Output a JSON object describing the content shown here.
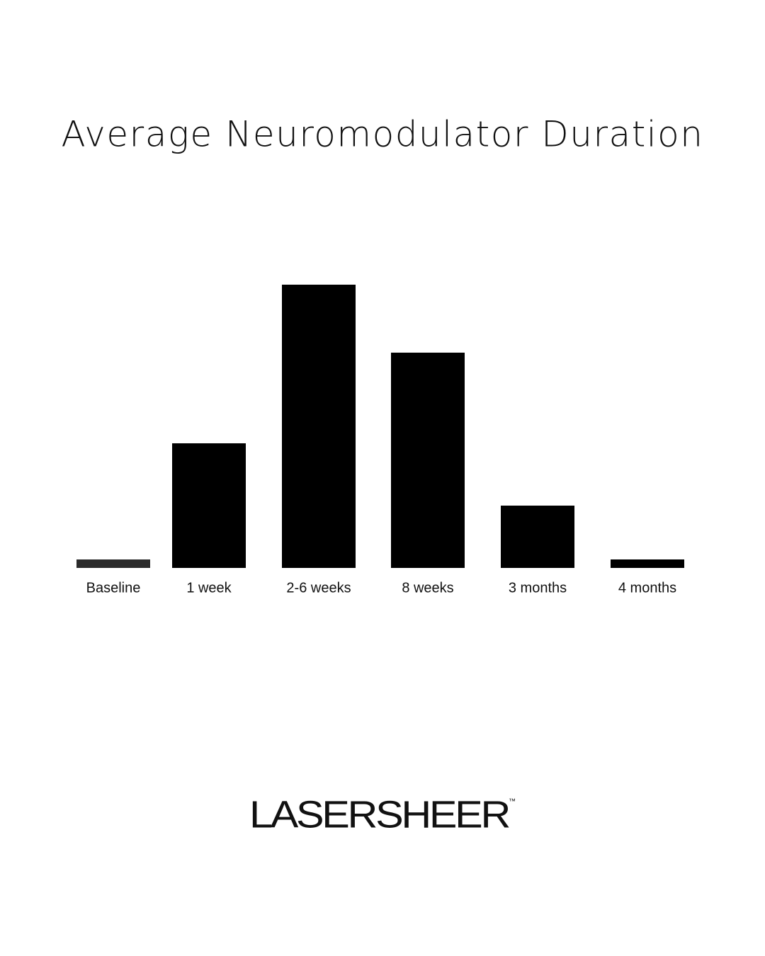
{
  "chart_data": {
    "type": "bar",
    "title": "Average Neuromodulator Duration",
    "categories": [
      "Baseline",
      "1 week",
      "2-6 weeks",
      "8 weeks",
      "3 months",
      "4 months"
    ],
    "values": [
      3,
      44,
      100,
      76,
      22,
      3
    ],
    "colors": [
      "#2b2b2b",
      "#000000",
      "#000000",
      "#000000",
      "#000000",
      "#000000"
    ],
    "ylim": [
      0,
      100
    ]
  },
  "brand": {
    "name": "LASERSHEER",
    "trademark": "™"
  }
}
